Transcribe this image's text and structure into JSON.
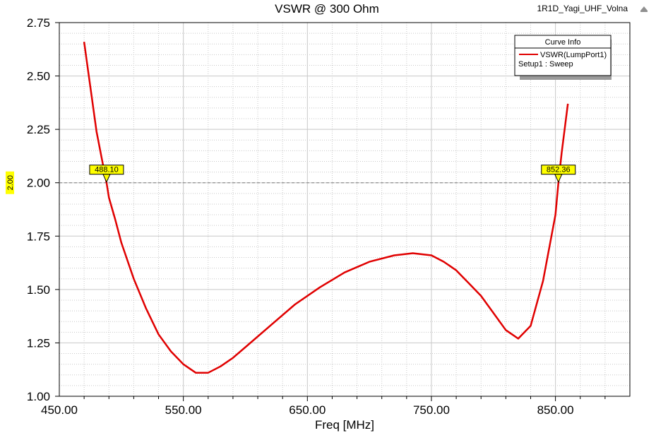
{
  "project_name": "1R1D_Yagi_UHF_Volna",
  "colors": {
    "curve": "#e00000",
    "marker_fill": "#ffff00",
    "grid": "#c8c8c8",
    "ref_line": "#7f7f7f"
  },
  "legend": {
    "header": "Curve Info",
    "series_label": "VSWR(LumpPort1)",
    "setup_label": "Setup1 : Sweep"
  },
  "ref_line_label": "2.00",
  "markers": [
    {
      "label": "488.10",
      "x": 488.1,
      "y": 2.0
    },
    {
      "label": "852.36",
      "x": 852.36,
      "y": 2.0
    }
  ],
  "chart_data": {
    "type": "line",
    "title": "VSWR @ 300 Ohm",
    "xlabel": "Freq [MHz]",
    "ylabel": "",
    "xlim": [
      450,
      910
    ],
    "ylim": [
      1.0,
      2.75
    ],
    "x_ticks": [
      450,
      550,
      650,
      750,
      850
    ],
    "x_tick_labels": [
      "450.00",
      "550.00",
      "650.00",
      "750.00",
      "850.00"
    ],
    "y_ticks": [
      1.0,
      1.25,
      1.5,
      1.75,
      2.0,
      2.25,
      2.5,
      2.75
    ],
    "y_tick_labels": [
      "1.00",
      "1.25",
      "1.50",
      "1.75",
      "2.00",
      "2.25",
      "2.50",
      "2.75"
    ],
    "grid": true,
    "legend_position": "top-right",
    "series": [
      {
        "name": "VSWR(LumpPort1)",
        "x": [
          470,
          475,
          480,
          485,
          488.1,
          490,
          495,
          500,
          510,
          520,
          530,
          540,
          550,
          560,
          570,
          580,
          590,
          600,
          620,
          640,
          660,
          680,
          700,
          720,
          735,
          750,
          760,
          770,
          780,
          790,
          800,
          810,
          815,
          820,
          830,
          840,
          850,
          852.36,
          855,
          860
        ],
        "values": [
          2.66,
          2.45,
          2.24,
          2.09,
          2.0,
          1.93,
          1.83,
          1.72,
          1.55,
          1.41,
          1.29,
          1.21,
          1.15,
          1.11,
          1.11,
          1.14,
          1.18,
          1.23,
          1.33,
          1.43,
          1.51,
          1.58,
          1.63,
          1.66,
          1.67,
          1.66,
          1.63,
          1.59,
          1.53,
          1.47,
          1.39,
          1.31,
          1.29,
          1.27,
          1.33,
          1.54,
          1.85,
          2.0,
          2.14,
          2.37
        ]
      }
    ]
  }
}
